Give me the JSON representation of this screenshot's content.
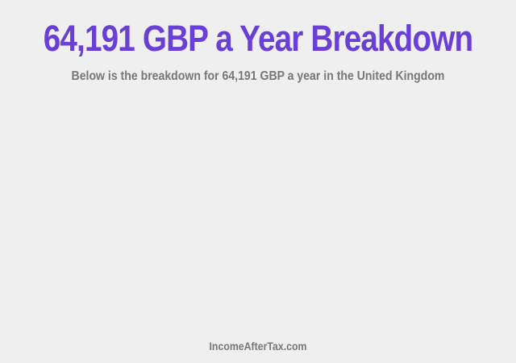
{
  "title": "64,191 GBP a Year Breakdown",
  "subtitle": "Below is the breakdown for 64,191 GBP a year in the United Kingdom",
  "footer": "IncomeAfterTax.com",
  "colors": {
    "title": "#6a3fd6",
    "text": "#777777",
    "background": "#efefef"
  }
}
